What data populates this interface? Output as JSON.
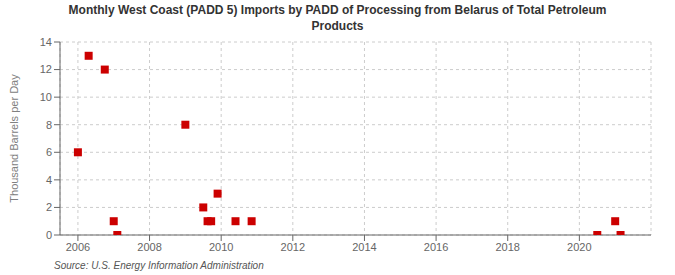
{
  "chart_data": {
    "type": "scatter",
    "title": "Monthly West Coast (PADD 5) Imports by PADD of Processing from Belarus of Total Petroleum\nProducts",
    "y_label": "Thousand Barrels per Day",
    "source": "Source: U.S. Energy Information Administration",
    "x": [
      2006.0,
      2006.3,
      2006.75,
      2007.0,
      2007.1,
      2009.0,
      2009.5,
      2009.62,
      2009.72,
      2009.9,
      2010.4,
      2010.85,
      2020.5,
      2021.0,
      2021.15
    ],
    "values": [
      6,
      13,
      12,
      1,
      0,
      8,
      2,
      1,
      1,
      3,
      1,
      1,
      0,
      1,
      0
    ],
    "color": "#cc0000",
    "marker": "square",
    "xlim": [
      2005.5,
      2022.0
    ],
    "xticks": [
      2006,
      2008,
      2010,
      2012,
      2014,
      2016,
      2018,
      2020
    ],
    "ylim": [
      0,
      14
    ],
    "yticks": [
      0,
      2,
      4,
      6,
      8,
      10,
      12,
      14
    ],
    "grid": true
  }
}
